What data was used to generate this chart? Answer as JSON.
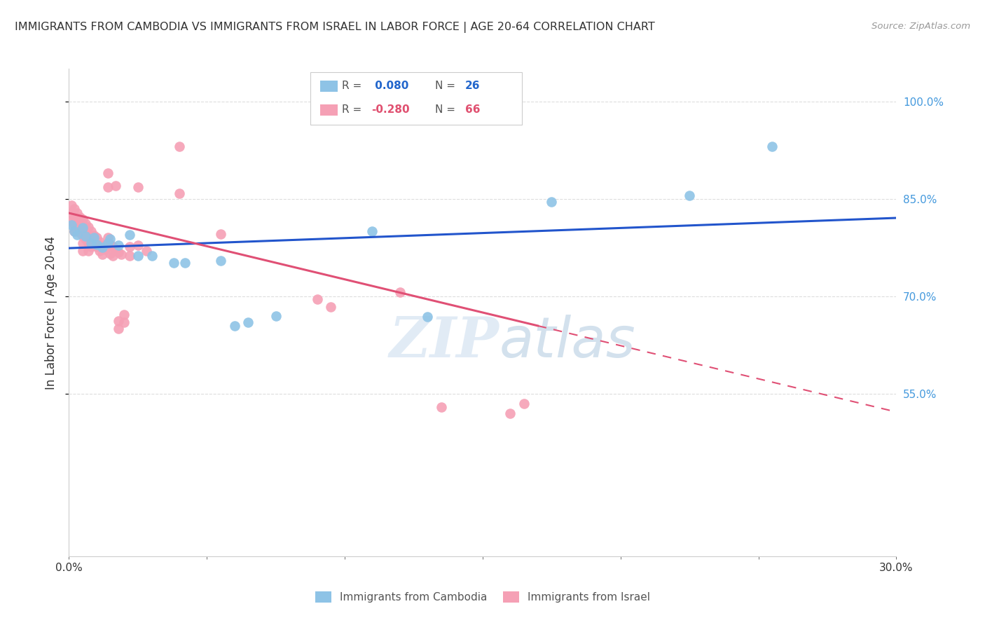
{
  "title": "IMMIGRANTS FROM CAMBODIA VS IMMIGRANTS FROM ISRAEL IN LABOR FORCE | AGE 20-64 CORRELATION CHART",
  "source": "Source: ZipAtlas.com",
  "ylabel": "In Labor Force | Age 20-64",
  "xlim": [
    0.0,
    0.3
  ],
  "ylim": [
    0.3,
    1.05
  ],
  "legend_R_cambodia": " 0.080",
  "legend_N_cambodia": "26",
  "legend_R_israel": "-0.280",
  "legend_N_israel": "66",
  "watermark": "ZIPatlas",
  "cambodia_color": "#8ec3e6",
  "israel_color": "#f5a0b5",
  "line_cambodia_color": "#2255cc",
  "line_israel_color": "#e05075",
  "background_color": "#ffffff",
  "grid_color": "#dddddd",
  "title_color": "#333333",
  "right_axis_color": "#4499dd",
  "legend_val_cambodia_color": "#2266cc",
  "legend_val_israel_color": "#e05070",
  "cambodia_points": [
    [
      0.001,
      0.81
    ],
    [
      0.002,
      0.8
    ],
    [
      0.003,
      0.795
    ],
    [
      0.005,
      0.805
    ],
    [
      0.006,
      0.792
    ],
    [
      0.008,
      0.782
    ],
    [
      0.009,
      0.79
    ],
    [
      0.01,
      0.78
    ],
    [
      0.012,
      0.775
    ],
    [
      0.014,
      0.782
    ],
    [
      0.015,
      0.788
    ],
    [
      0.018,
      0.778
    ],
    [
      0.022,
      0.795
    ],
    [
      0.025,
      0.762
    ],
    [
      0.03,
      0.762
    ],
    [
      0.038,
      0.752
    ],
    [
      0.042,
      0.752
    ],
    [
      0.055,
      0.755
    ],
    [
      0.06,
      0.655
    ],
    [
      0.065,
      0.66
    ],
    [
      0.075,
      0.67
    ],
    [
      0.11,
      0.8
    ],
    [
      0.13,
      0.668
    ],
    [
      0.175,
      0.845
    ],
    [
      0.225,
      0.855
    ],
    [
      0.255,
      0.93
    ]
  ],
  "israel_points": [
    [
      0.001,
      0.84
    ],
    [
      0.001,
      0.828
    ],
    [
      0.001,
      0.816
    ],
    [
      0.002,
      0.835
    ],
    [
      0.002,
      0.822
    ],
    [
      0.002,
      0.81
    ],
    [
      0.002,
      0.8
    ],
    [
      0.003,
      0.828
    ],
    [
      0.003,
      0.815
    ],
    [
      0.003,
      0.802
    ],
    [
      0.004,
      0.822
    ],
    [
      0.004,
      0.81
    ],
    [
      0.004,
      0.798
    ],
    [
      0.005,
      0.818
    ],
    [
      0.005,
      0.806
    ],
    [
      0.005,
      0.794
    ],
    [
      0.005,
      0.782
    ],
    [
      0.005,
      0.77
    ],
    [
      0.006,
      0.812
    ],
    [
      0.006,
      0.8
    ],
    [
      0.006,
      0.788
    ],
    [
      0.007,
      0.806
    ],
    [
      0.007,
      0.794
    ],
    [
      0.007,
      0.782
    ],
    [
      0.007,
      0.77
    ],
    [
      0.008,
      0.8
    ],
    [
      0.008,
      0.788
    ],
    [
      0.008,
      0.776
    ],
    [
      0.009,
      0.794
    ],
    [
      0.009,
      0.78
    ],
    [
      0.01,
      0.79
    ],
    [
      0.01,
      0.776
    ],
    [
      0.011,
      0.784
    ],
    [
      0.011,
      0.77
    ],
    [
      0.012,
      0.778
    ],
    [
      0.012,
      0.765
    ],
    [
      0.013,
      0.772
    ],
    [
      0.014,
      0.89
    ],
    [
      0.014,
      0.868
    ],
    [
      0.014,
      0.79
    ],
    [
      0.015,
      0.78
    ],
    [
      0.015,
      0.766
    ],
    [
      0.016,
      0.776
    ],
    [
      0.016,
      0.762
    ],
    [
      0.017,
      0.87
    ],
    [
      0.017,
      0.772
    ],
    [
      0.018,
      0.768
    ],
    [
      0.018,
      0.662
    ],
    [
      0.018,
      0.65
    ],
    [
      0.019,
      0.764
    ],
    [
      0.02,
      0.672
    ],
    [
      0.02,
      0.66
    ],
    [
      0.022,
      0.776
    ],
    [
      0.022,
      0.762
    ],
    [
      0.025,
      0.868
    ],
    [
      0.025,
      0.778
    ],
    [
      0.028,
      0.77
    ],
    [
      0.04,
      0.93
    ],
    [
      0.04,
      0.858
    ],
    [
      0.055,
      0.796
    ],
    [
      0.09,
      0.696
    ],
    [
      0.095,
      0.684
    ],
    [
      0.12,
      0.706
    ],
    [
      0.135,
      0.53
    ],
    [
      0.16,
      0.52
    ],
    [
      0.165,
      0.535
    ]
  ]
}
